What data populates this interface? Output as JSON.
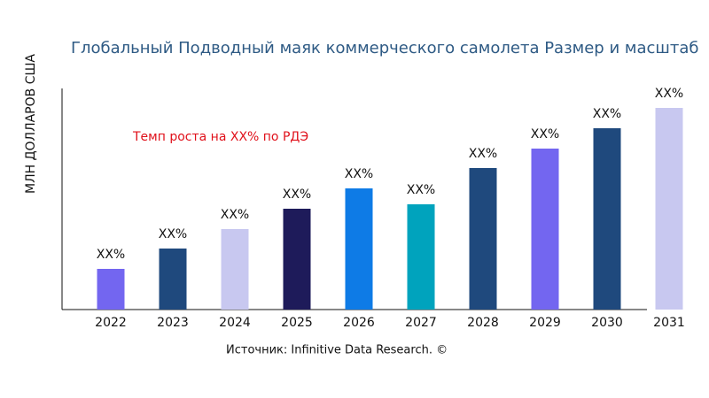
{
  "chart_data": {
    "type": "bar",
    "title": "Глобальный Подводный маяк коммерческого самолета Размер и масштаб",
    "y_label": "МЛН ДОЛЛАРОВ США",
    "annotation": "Темп роста на XX% по РДЭ",
    "source": "Источник: Infinitive Data Research. ©",
    "categories": [
      "2022",
      "2023",
      "2024",
      "2025",
      "2026",
      "2027",
      "2028",
      "2029",
      "2030",
      "2031"
    ],
    "values": [
      46,
      69,
      91,
      114,
      137,
      119,
      160,
      182,
      205,
      228
    ],
    "value_labels": [
      "XX%",
      "XX%",
      "XX%",
      "XX%",
      "XX%",
      "XX%",
      "XX%",
      "XX%",
      "XX%",
      "XX%"
    ],
    "colors": [
      "#7366f0",
      "#1f497d",
      "#c8c8f0",
      "#1e1b5a",
      "#0e7be6",
      "#00a3bd",
      "#1f497d",
      "#7366f0",
      "#1f497d",
      "#c8c8f0"
    ],
    "ylim": [
      0,
      250
    ]
  }
}
